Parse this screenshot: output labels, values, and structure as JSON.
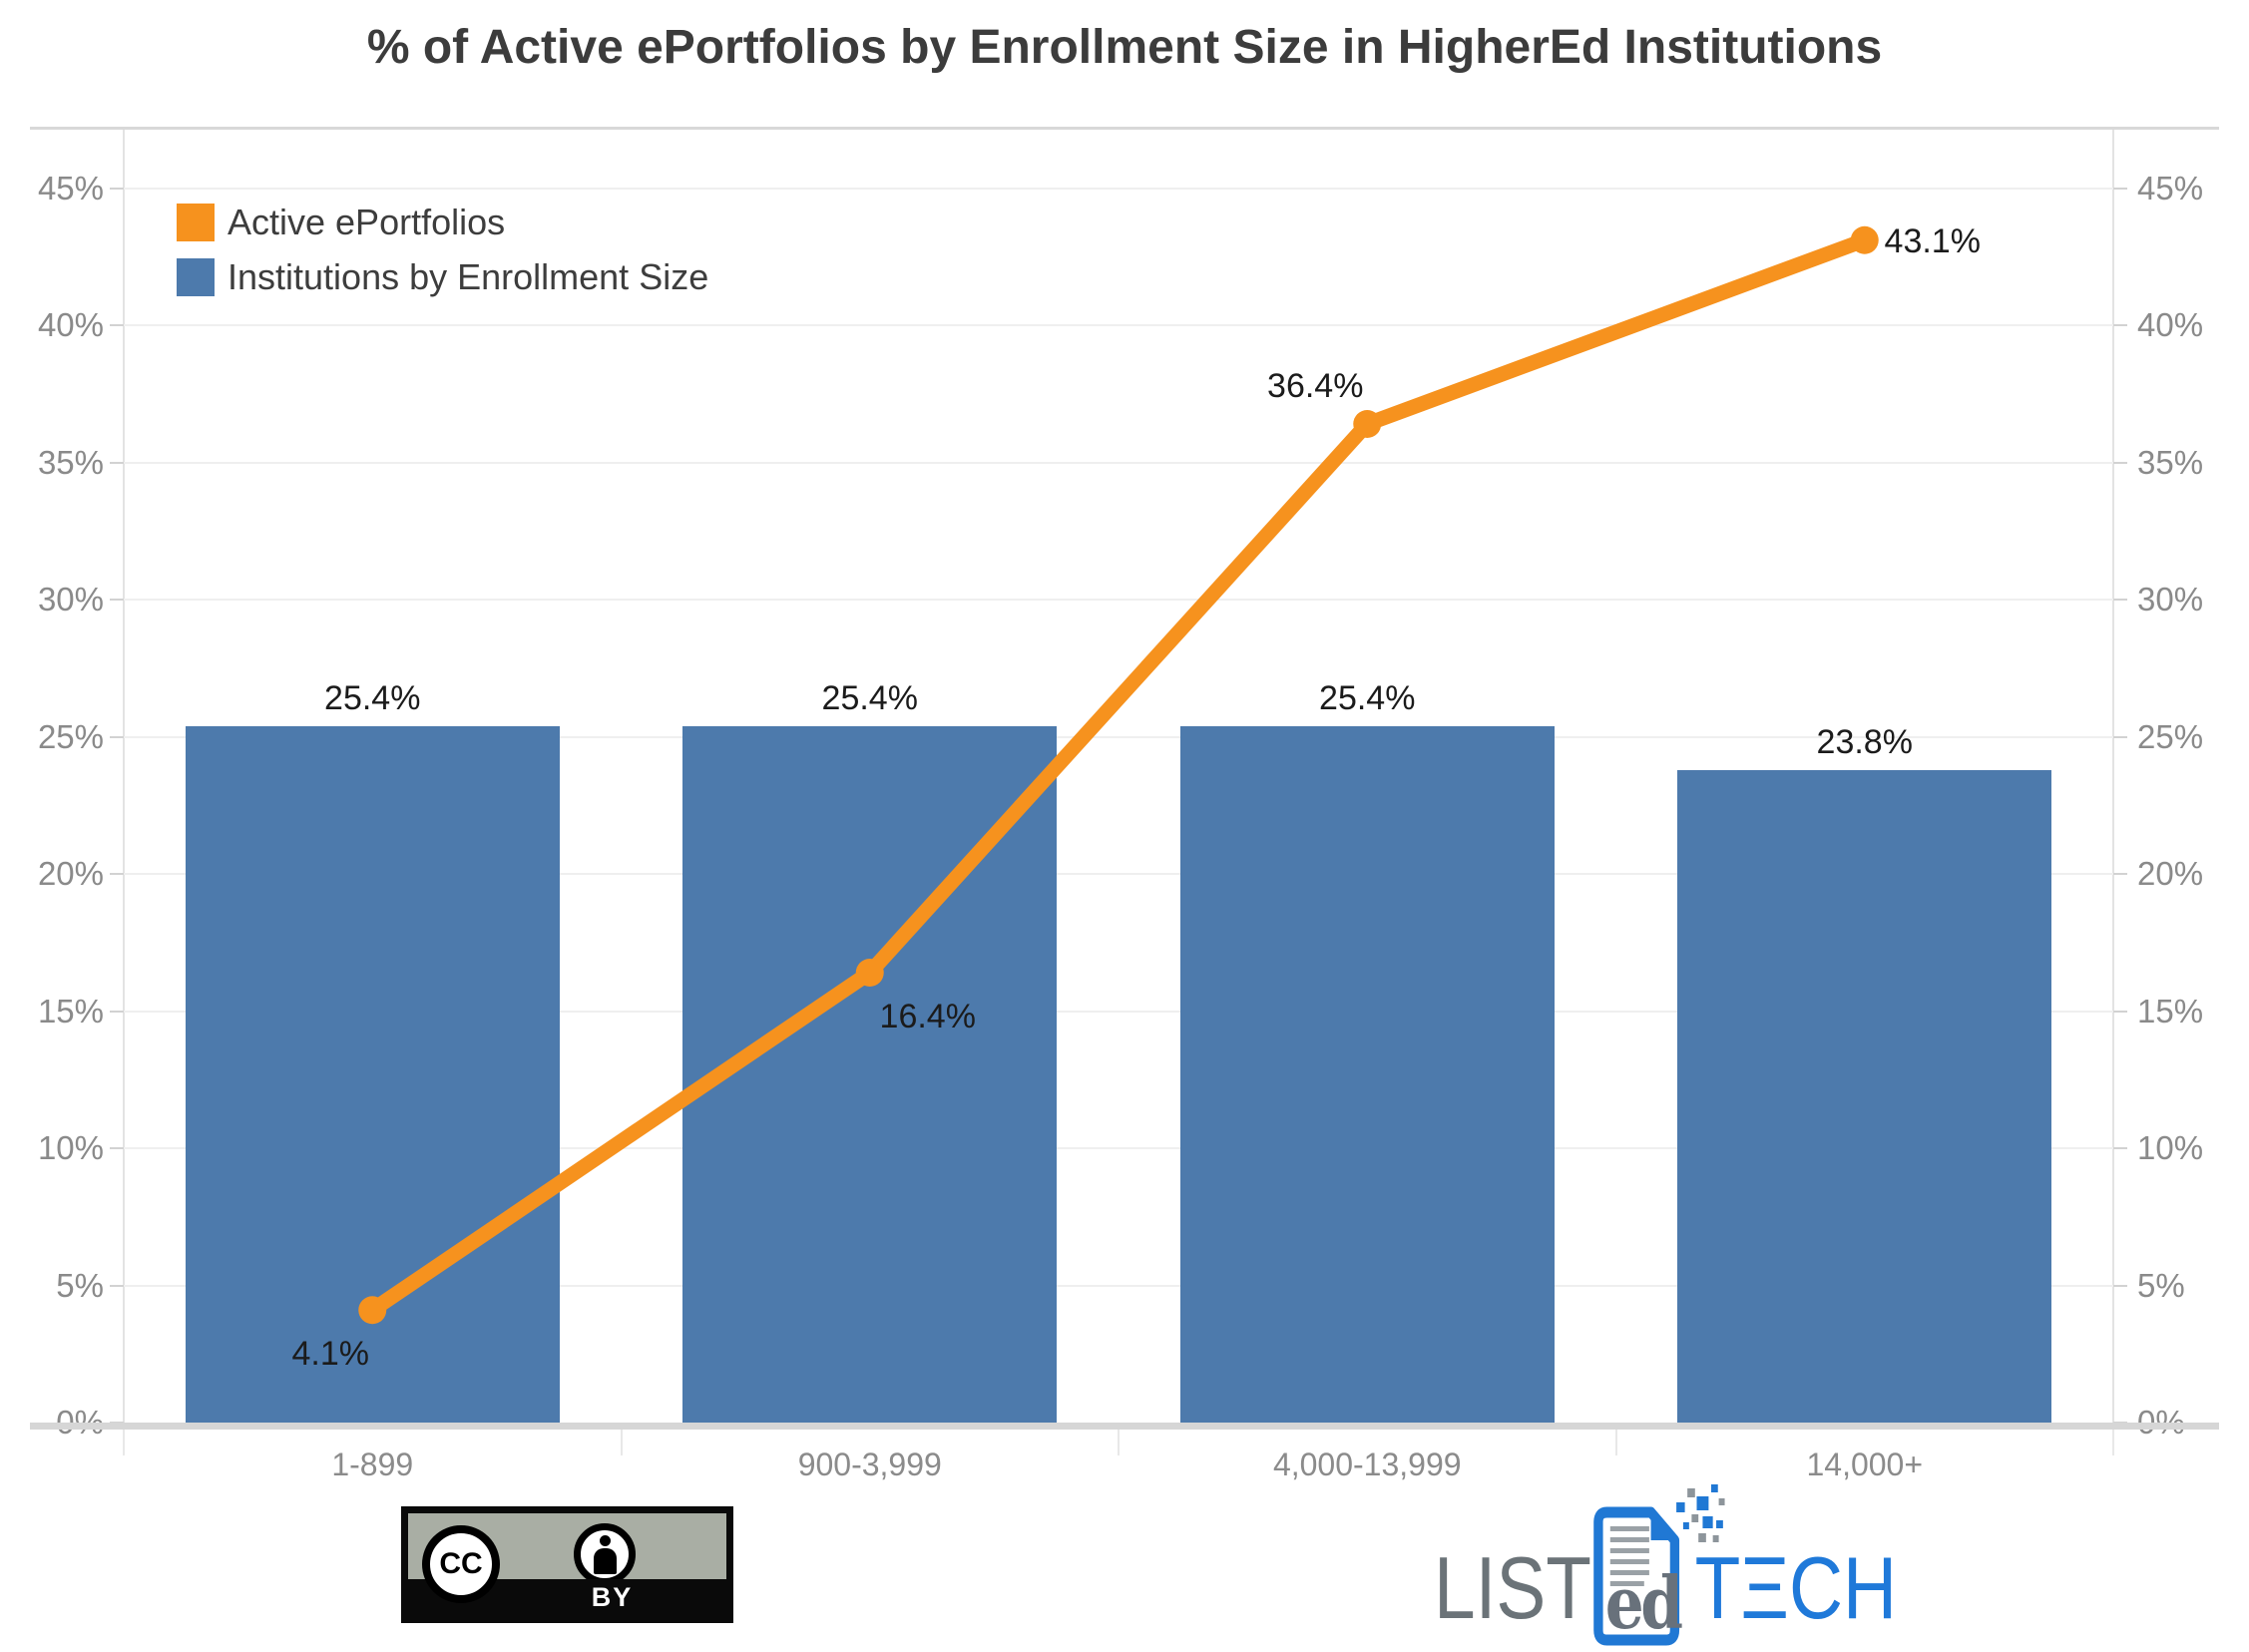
{
  "chart_data": {
    "type": "combo",
    "title": "% of Active ePortfolios by Enrollment Size in HigherEd Institutions",
    "categories": [
      "1-899",
      "900-3,999",
      "4,000-13,999",
      "14,000+"
    ],
    "series": [
      {
        "name": "Institutions by Enrollment Size",
        "type": "bar",
        "color": "#4D7AAC",
        "values": [
          25.4,
          25.4,
          25.4,
          23.8
        ],
        "labels": [
          "25.4%",
          "25.4%",
          "25.4%",
          "23.8%"
        ]
      },
      {
        "name": "Active ePortfolios",
        "type": "line",
        "color": "#F6921E",
        "values": [
          4.1,
          16.4,
          36.4,
          43.1
        ],
        "labels": [
          "4.1%",
          "16.4%",
          "36.4%",
          "43.1%"
        ]
      }
    ],
    "xlabel": "",
    "ylabel": "",
    "ylim": [
      0,
      45
    ],
    "y_ticks": {
      "values": [
        0,
        5,
        10,
        15,
        20,
        25,
        30,
        35,
        40,
        45
      ],
      "labels": [
        "0%",
        "5%",
        "10%",
        "15%",
        "20%",
        "25%",
        "30%",
        "35%",
        "40%",
        "45%"
      ]
    },
    "grid": true,
    "legend_position": "top-left",
    "axis_sides": [
      "left",
      "right"
    ]
  },
  "footer": {
    "cc_badge": {
      "cc": "CC",
      "by": "BY"
    },
    "logo": {
      "list": "LIST",
      "ed": "ed",
      "tech": "TECH",
      "tech_display": "TΞCH"
    }
  }
}
